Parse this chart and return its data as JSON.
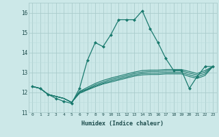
{
  "title": "",
  "xlabel": "Humidex (Indice chaleur)",
  "ylabel": "",
  "background_color": "#cce8e8",
  "grid_color_major": "#aacccc",
  "grid_color_minor": "#bbdddd",
  "line_color": "#1a7a6e",
  "x_data": [
    0,
    1,
    2,
    3,
    4,
    5,
    6,
    7,
    8,
    9,
    10,
    11,
    12,
    13,
    14,
    15,
    16,
    17,
    18,
    19,
    20,
    21,
    22,
    23
  ],
  "series": [
    [
      12.3,
      12.2,
      11.9,
      11.7,
      11.55,
      11.45,
      12.2,
      13.6,
      14.5,
      14.3,
      14.9,
      15.65,
      15.65,
      15.65,
      16.1,
      15.2,
      14.5,
      13.7,
      13.1,
      13.1,
      12.2,
      12.8,
      13.3,
      13.3
    ],
    [
      12.3,
      12.2,
      11.9,
      11.8,
      11.7,
      11.5,
      12.05,
      12.25,
      12.45,
      12.6,
      12.72,
      12.82,
      12.92,
      13.02,
      13.1,
      13.12,
      13.12,
      13.15,
      13.15,
      13.15,
      13.05,
      12.95,
      13.1,
      13.3
    ],
    [
      12.3,
      12.2,
      11.9,
      11.8,
      11.7,
      11.5,
      12.02,
      12.18,
      12.38,
      12.52,
      12.65,
      12.75,
      12.85,
      12.95,
      13.02,
      13.05,
      13.05,
      13.08,
      13.08,
      13.08,
      12.97,
      12.87,
      13.02,
      13.3
    ],
    [
      12.3,
      12.2,
      11.9,
      11.8,
      11.7,
      11.5,
      11.98,
      12.15,
      12.32,
      12.46,
      12.58,
      12.68,
      12.78,
      12.88,
      12.95,
      12.97,
      12.97,
      13.0,
      13.0,
      13.0,
      12.88,
      12.78,
      12.93,
      13.3
    ],
    [
      12.3,
      12.2,
      11.9,
      11.8,
      11.7,
      11.5,
      11.95,
      12.12,
      12.28,
      12.42,
      12.52,
      12.62,
      12.72,
      12.82,
      12.88,
      12.9,
      12.9,
      12.93,
      12.93,
      12.93,
      12.8,
      12.7,
      12.85,
      13.3
    ]
  ],
  "ylim": [
    11.0,
    16.5
  ],
  "yticks": [
    11,
    12,
    13,
    14,
    15,
    16
  ],
  "xticks": [
    0,
    1,
    2,
    3,
    4,
    5,
    6,
    7,
    8,
    9,
    10,
    11,
    12,
    13,
    14,
    15,
    16,
    17,
    18,
    19,
    20,
    21,
    22,
    23
  ],
  "marker": "D",
  "marker_size": 2.0
}
